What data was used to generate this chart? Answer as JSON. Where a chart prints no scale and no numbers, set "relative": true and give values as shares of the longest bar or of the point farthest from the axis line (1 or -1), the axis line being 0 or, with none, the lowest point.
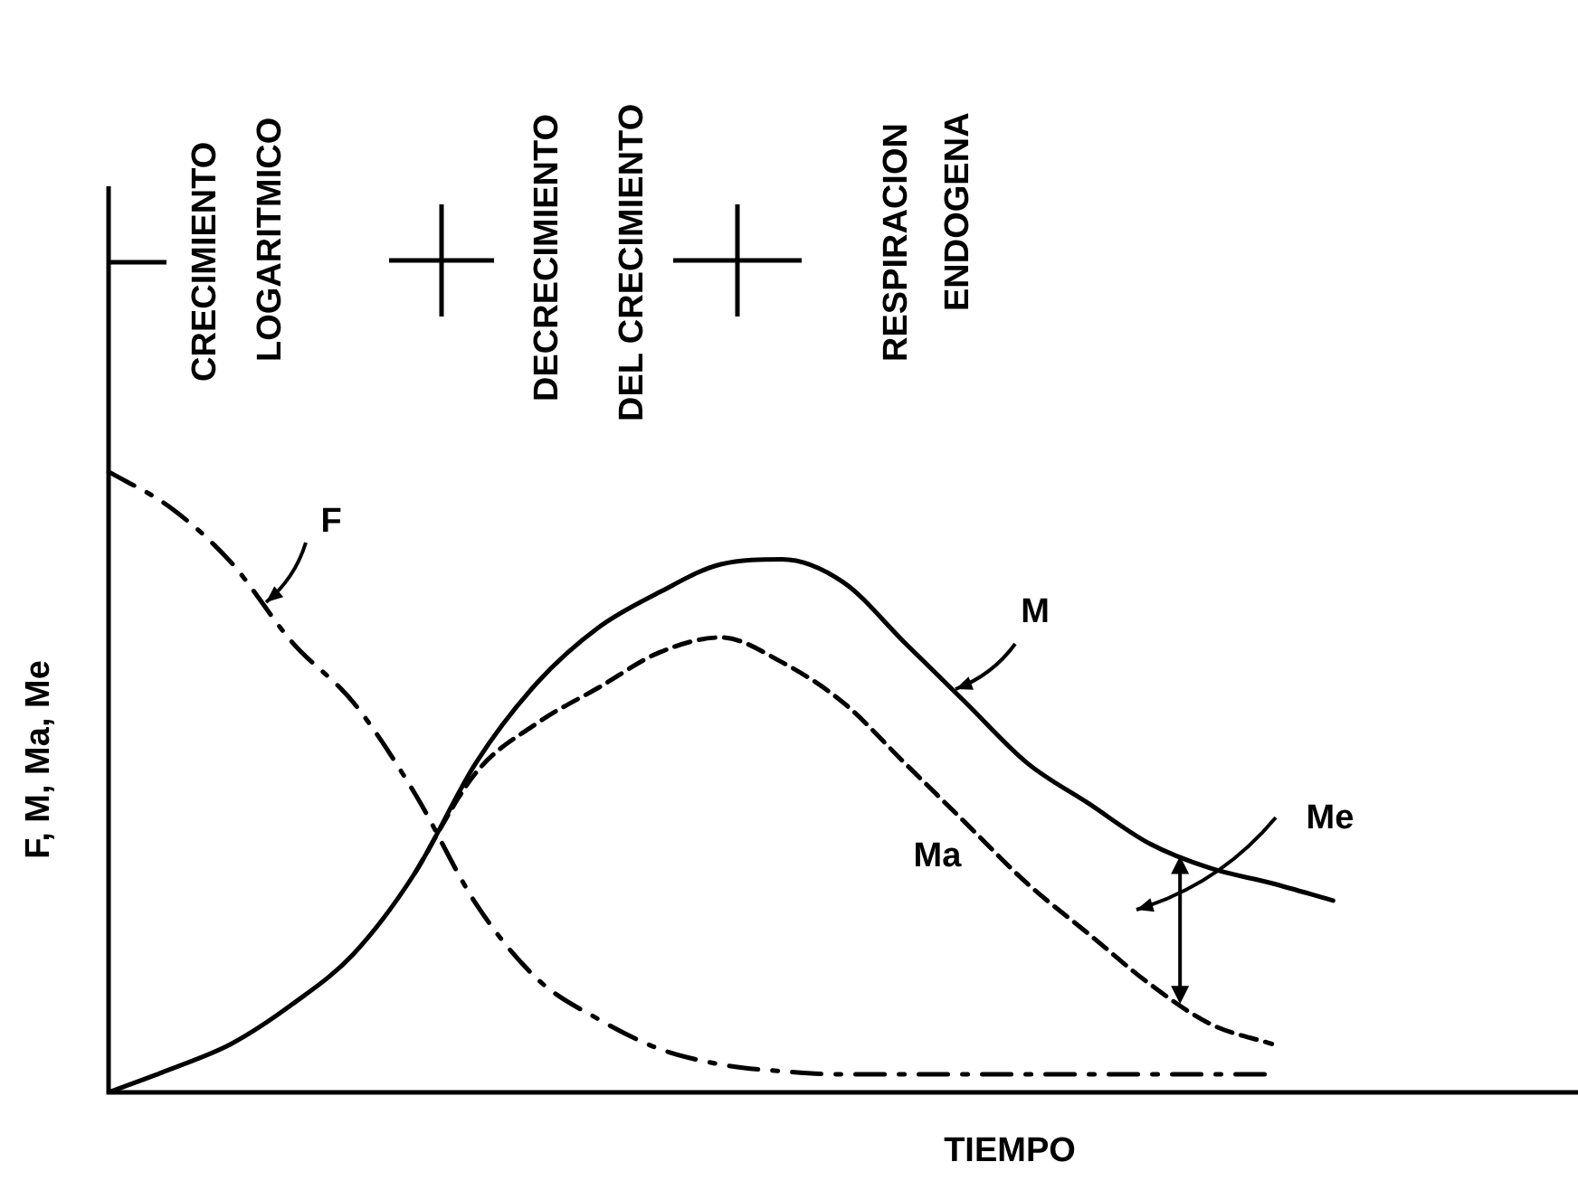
{
  "chart_data": {
    "type": "line",
    "relative": true,
    "xlabel": "TIEMPO",
    "ylabel": "F, M, Ma, Me",
    "categories": [
      null,
      null,
      null,
      null,
      null,
      null,
      null,
      null,
      null,
      null,
      null,
      null,
      null,
      null,
      null,
      null,
      null,
      null,
      null,
      null,
      null,
      null,
      null,
      null,
      null
    ],
    "series": [
      {
        "name": "F",
        "color": "#000000",
        "line_style": "dashdot",
        "values": [
          1.0,
          0.943,
          0.854,
          0.725,
          0.628,
          0.482,
          0.304,
          0.183,
          0.118,
          0.07,
          0.045,
          0.034,
          0.029,
          0.029,
          0.029,
          0.029,
          0.029,
          0.029,
          0.029,
          0.029,
          null,
          null,
          null,
          null,
          null
        ]
      },
      {
        "name": "M",
        "color": "#000000",
        "line_style": "solid",
        "values": [
          0,
          0.037,
          0.078,
          0.142,
          0.223,
          0.353,
          0.531,
          0.66,
          0.749,
          0.806,
          0.851,
          0.859,
          0.822,
          0.725,
          0.628,
          0.531,
          0.466,
          0.401,
          0.361,
          0.337,
          0.309,
          null,
          null,
          null,
          null
        ]
      },
      {
        "name": "Ma",
        "color": "#000000",
        "line_style": "dashed",
        "values": [
          null,
          null,
          null,
          null,
          null,
          0.353,
          0.515,
          0.595,
          0.652,
          0.709,
          0.733,
          0.693,
          0.628,
          0.531,
          0.434,
          0.337,
          0.256,
          0.175,
          0.11,
          0.078,
          null,
          null,
          null,
          null,
          null
        ]
      }
    ],
    "annotations": [
      "CRECIMIENTO\nLOGARITMICO",
      "DECRECIMIENTO\nDEL CRECIMIENTO",
      "RESPIRACION\nENDOGENA",
      "Me"
    ],
    "legend": false,
    "marker": "none"
  }
}
